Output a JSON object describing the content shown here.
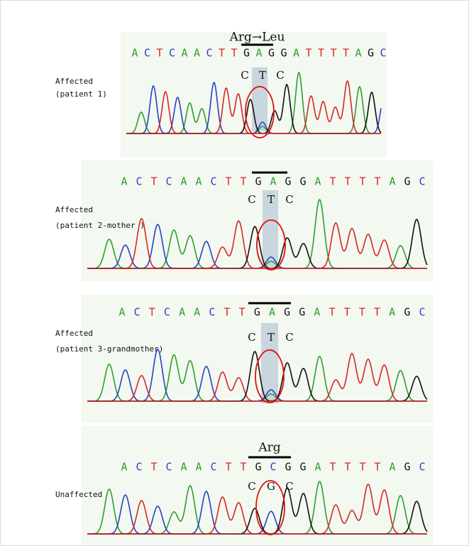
{
  "panels": [
    {
      "annotation": "Arg→Leu",
      "bases": [
        "A",
        "C",
        "T",
        "C",
        "A",
        "A",
        "C",
        "T",
        "T",
        "G",
        "A",
        "G",
        "G",
        "A",
        "T",
        "T",
        "T",
        "T",
        "A",
        "G",
        "C"
      ],
      "codon": [
        "C",
        "T",
        "C"
      ],
      "label": [
        "Affected",
        "(patient 1)"
      ]
    },
    {
      "bases": [
        "A",
        "C",
        "T",
        "C",
        "A",
        "A",
        "C",
        "T",
        "T",
        "G",
        "A",
        "G",
        "G",
        "A",
        "T",
        "T",
        "T",
        "T",
        "A",
        "G",
        "C"
      ],
      "codon": [
        "C",
        "T",
        "C"
      ],
      "label": [
        "Affected",
        "(patient 2-mother )"
      ]
    },
    {
      "bases": [
        "A",
        "C",
        "T",
        "C",
        "A",
        "A",
        "C",
        "T",
        "T",
        "G",
        "A",
        "G",
        "G",
        "A",
        "T",
        "T",
        "T",
        "T",
        "A",
        "G",
        "C"
      ],
      "codon": [
        "C",
        "T",
        "C"
      ],
      "label": [
        "Affected",
        "(patient 3-grandmother)"
      ]
    },
    {
      "annotation": "Arg",
      "bases": [
        "A",
        "C",
        "T",
        "C",
        "A",
        "A",
        "C",
        "T",
        "T",
        "G",
        "C",
        "G",
        "G",
        "A",
        "T",
        "T",
        "T",
        "T",
        "A",
        "G",
        "C"
      ],
      "codon": [
        "C",
        "G",
        "C"
      ],
      "label": [
        "Unaffected"
      ]
    }
  ]
}
